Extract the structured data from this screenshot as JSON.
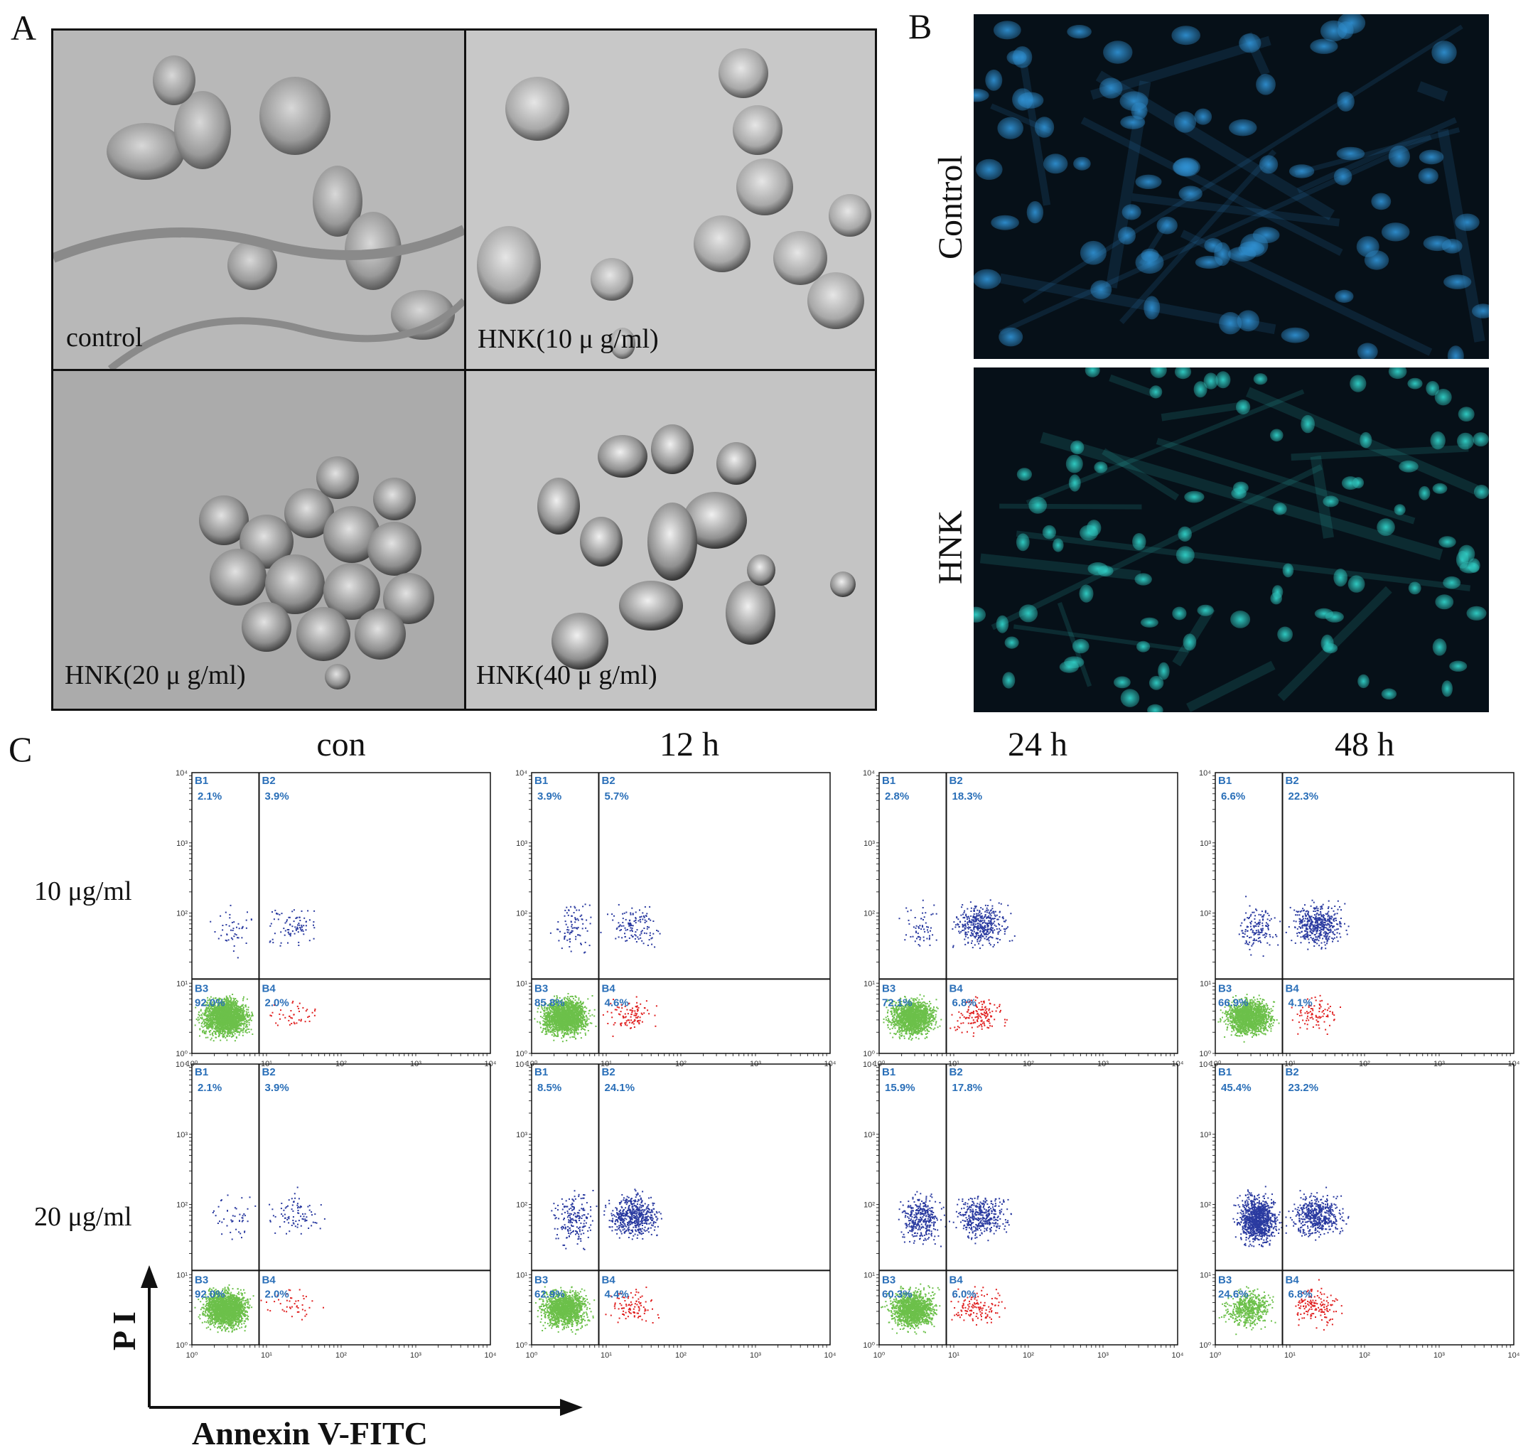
{
  "panel_letters": {
    "a": "A",
    "b": "B",
    "c": "C"
  },
  "panel_a": {
    "labels": [
      "control",
      "HNK(10  μ g/ml)",
      "HNK(20  μ g/ml)",
      "HNK(40  μ g/ml)"
    ]
  },
  "panel_b": {
    "labels": [
      "Control",
      "HNK"
    ],
    "colors": {
      "control_nuclei": "#2f8fd0",
      "hnk_nuclei": "#2fc8c0",
      "background": "#061018"
    }
  },
  "panel_c": {
    "column_headers": [
      "con",
      "12 h",
      "24 h",
      "48 h"
    ],
    "row_labels": [
      "10 μg/ml",
      "20 μg/ml"
    ],
    "y_axis_title": "P I",
    "x_axis_title": "Annexin V-FITC",
    "colors": {
      "gate_text": "#2a6fb8",
      "live": "#6cc04a",
      "early_apoptotic": "#e02020",
      "late": "#2a3aa0"
    },
    "gates": [
      "B1",
      "B2",
      "B3",
      "B4"
    ],
    "plots": [
      {
        "row": "10 μg/ml",
        "col": "con",
        "B1": "2.1%",
        "B2": "3.9%",
        "B3": "92.0%",
        "B4": "2.0%"
      },
      {
        "row": "10 μg/ml",
        "col": "12 h",
        "B1": "3.9%",
        "B2": "5.7%",
        "B3": "85.8%",
        "B4": "4.6%"
      },
      {
        "row": "10 μg/ml",
        "col": "24 h",
        "B1": "2.8%",
        "B2": "18.3%",
        "B3": "72.1%",
        "B4": "6.8%"
      },
      {
        "row": "10 μg/ml",
        "col": "48 h",
        "B1": "6.6%",
        "B2": "22.3%",
        "B3": "66.9%",
        "B4": "4.1%"
      },
      {
        "row": "20 μg/ml",
        "col": "con",
        "B1": "2.1%",
        "B2": "3.9%",
        "B3": "92.0%",
        "B4": "2.0%"
      },
      {
        "row": "20 μg/ml",
        "col": "12 h",
        "B1": "8.5%",
        "B2": "24.1%",
        "B3": "62.9%",
        "B4": "4.4%"
      },
      {
        "row": "20 μg/ml",
        "col": "24 h",
        "B1": "15.9%",
        "B2": "17.8%",
        "B3": "60.3%",
        "B4": "6.0%"
      },
      {
        "row": "20 μg/ml",
        "col": "48 h",
        "B1": "45.4%",
        "B2": "23.2%",
        "B3": "24.6%",
        "B4": "6.8%"
      }
    ]
  }
}
